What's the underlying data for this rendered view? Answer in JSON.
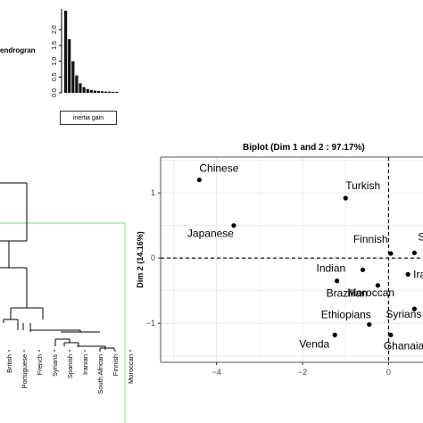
{
  "dendrogram": {
    "title": "endrogran",
    "leaves": [
      "British",
      "Portuguese",
      "French",
      "Syrians",
      "Spanish",
      "Iranian",
      "South African",
      "Finnish",
      "Moroccan"
    ],
    "border_color": "#7dd87d"
  },
  "inertia_inset": {
    "label": "inertia gain",
    "y_ticks": [
      "0.0",
      "0.5",
      "1.0",
      "1.5",
      "2.0"
    ]
  },
  "chart_data": [
    {
      "type": "bar",
      "title": "",
      "xlabel": "inertia gain",
      "ylabel": "",
      "ylim": [
        0,
        2.6
      ],
      "values": [
        2.6,
        1.7,
        1.0,
        0.55,
        0.3,
        0.18,
        0.12,
        0.09,
        0.07,
        0.06,
        0.05,
        0.04,
        0.04,
        0.03,
        0.03
      ]
    },
    {
      "type": "scatter",
      "title": "Biplot (Dim 1 and 2 : 97.17%)",
      "xlabel": "",
      "ylabel": "Dim 2 (14.16%)",
      "xlim": [
        -5.3,
        0.8
      ],
      "ylim": [
        -1.6,
        1.55
      ],
      "x_ticks": [
        -4,
        -2,
        0
      ],
      "y_ticks": [
        -1,
        0,
        1
      ],
      "grid": true,
      "points": [
        {
          "label": "Chinese",
          "x": -4.4,
          "y": 1.2
        },
        {
          "label": "Japanese",
          "x": -3.6,
          "y": 0.5
        },
        {
          "label": "Turkish",
          "x": -1.0,
          "y": 0.92
        },
        {
          "label": "Finnish",
          "x": 0.05,
          "y": 0.07
        },
        {
          "label": "Southe",
          "x": 0.6,
          "y": 0.08
        },
        {
          "label": "Indian",
          "x": -0.6,
          "y": -0.18
        },
        {
          "label": "Ira",
          "x": 0.45,
          "y": -0.25
        },
        {
          "label": "Brazilian",
          "x": -1.2,
          "y": -0.35
        },
        {
          "label": "Moroccan",
          "x": -0.25,
          "y": -0.42
        },
        {
          "label": "Ethiopians",
          "x": -0.45,
          "y": -1.02
        },
        {
          "label": "Syrians",
          "x": 0.6,
          "y": -0.78
        },
        {
          "label": "Venda",
          "x": -1.25,
          "y": -1.18
        },
        {
          "label": "Ghanaia",
          "x": 0.05,
          "y": -1.18
        }
      ]
    }
  ]
}
